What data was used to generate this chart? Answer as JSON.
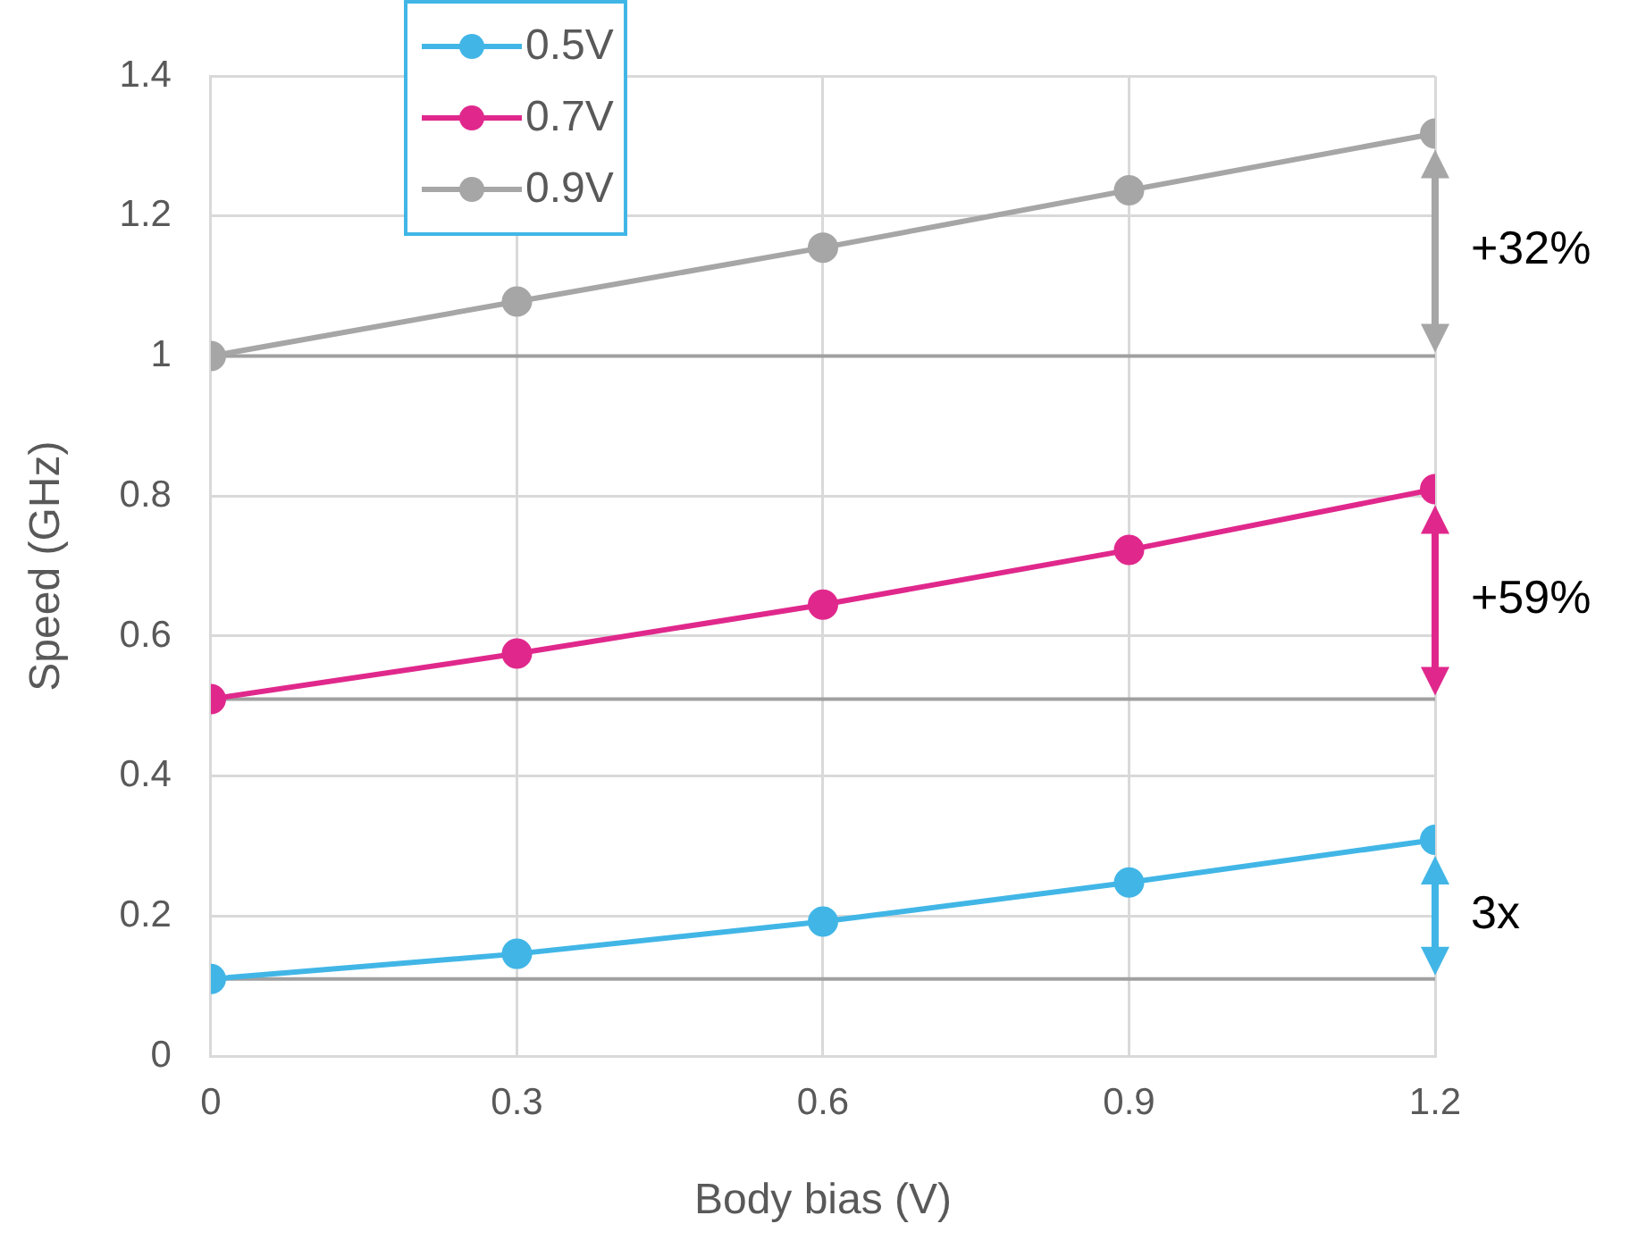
{
  "chart_data": {
    "type": "line",
    "xlabel": "Body bias (V)",
    "ylabel": "Speed (GHz)",
    "x": [
      0,
      0.3,
      0.6,
      0.9,
      1.2
    ],
    "series": [
      {
        "name": "0.5V",
        "color": "#41b6e6",
        "values": [
          0.11,
          0.146,
          0.192,
          0.248,
          0.309
        ]
      },
      {
        "name": "0.7V",
        "color": "#e0288c",
        "values": [
          0.51,
          0.575,
          0.645,
          0.723,
          0.81
        ]
      },
      {
        "name": "0.9V",
        "color": "#a6a6a6",
        "values": [
          1.0,
          1.078,
          1.155,
          1.237,
          1.318
        ]
      }
    ],
    "xlim": [
      0,
      1.2
    ],
    "xticks": [
      0,
      0.3,
      0.6,
      0.9,
      1.2
    ],
    "ylim": [
      0,
      1.4
    ],
    "yticks": [
      0,
      0.2,
      0.4,
      0.6,
      0.8,
      1,
      1.2,
      1.4
    ],
    "ref_lines": [
      {
        "axis": "y",
        "value": 0.11,
        "color": "#a0a0a0"
      },
      {
        "axis": "y",
        "value": 0.51,
        "color": "#a0a0a0"
      },
      {
        "axis": "y",
        "value": 1.0,
        "color": "#a0a0a0"
      }
    ],
    "annotations": [
      "3x",
      "+59%",
      "+32%"
    ],
    "grid": true,
    "legend": "top left",
    "marker": "circle",
    "line_style": "solid"
  }
}
